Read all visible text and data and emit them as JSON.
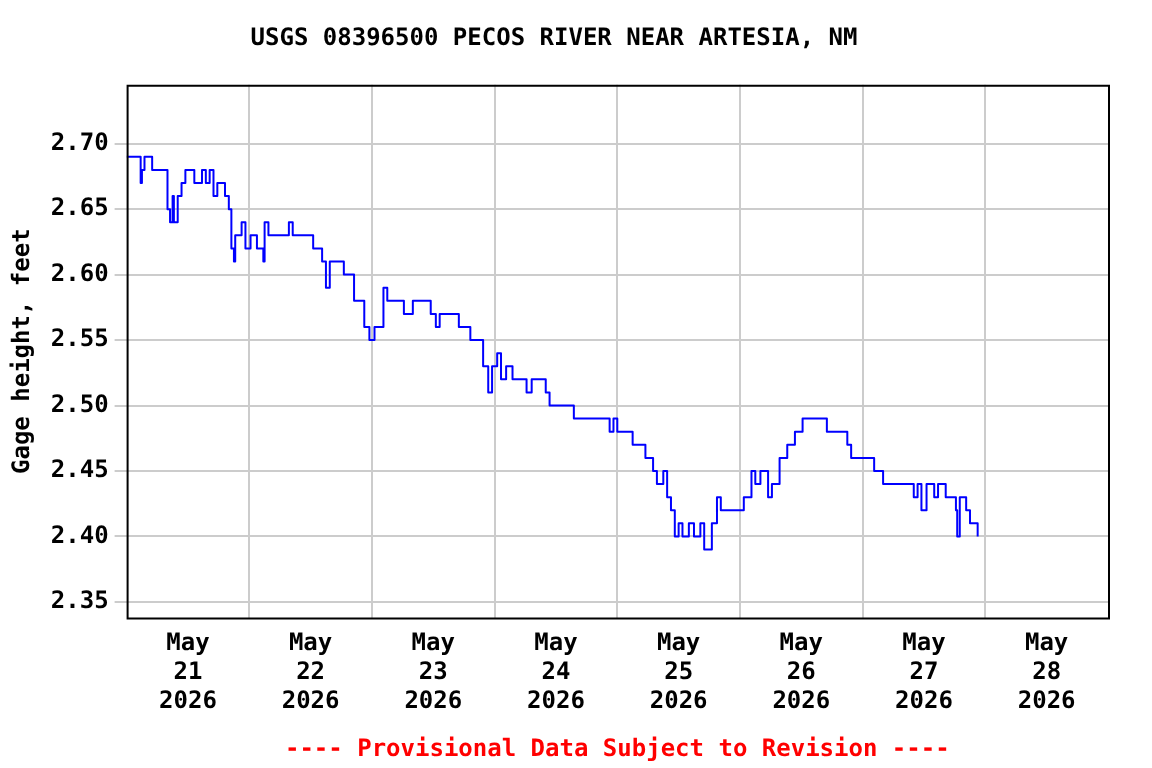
{
  "chart_data": {
    "type": "step",
    "title": "USGS 08396500 PECOS RIVER NEAR ARTESIA, NM",
    "ylabel": "Gage height, feet",
    "annotations": [
      "---- Provisional Data Subject to Revision ----"
    ],
    "xlim": [
      "2026-05-21T00:00",
      "2026-05-29T00:00"
    ],
    "xticks": [
      {
        "value": "2026-05-21T12:00",
        "label": "May 21 2026"
      },
      {
        "value": "2026-05-22T00:00",
        "label": null
      },
      {
        "value": "2026-05-22T12:00",
        "label": "May 22 2026"
      },
      {
        "value": "2026-05-23T00:00",
        "label": null
      },
      {
        "value": "2026-05-23T12:00",
        "label": "May 23 2026"
      },
      {
        "value": "2026-05-24T00:00",
        "label": null
      },
      {
        "value": "2026-05-24T12:00",
        "label": "May 24 2026"
      },
      {
        "value": "2026-05-25T00:00",
        "label": null
      },
      {
        "value": "2026-05-25T12:00",
        "label": "May 25 2026"
      },
      {
        "value": "2026-05-26T00:00",
        "label": null
      },
      {
        "value": "2026-05-26T12:00",
        "label": "May 26 2026"
      },
      {
        "value": "2026-05-27T00:00",
        "label": null
      },
      {
        "value": "2026-05-27T12:00",
        "label": "May 27 2026"
      },
      {
        "value": "2026-05-28T00:00",
        "label": null
      },
      {
        "value": "2026-05-28T12:00",
        "label": "May 28 2026"
      }
    ],
    "ylim": [
      2.338,
      2.745
    ],
    "yticks": [
      2.35,
      {
        "value": 2.4,
        "label": "2.40"
      },
      2.45,
      {
        "value": 2.5,
        "label": "2.50"
      },
      2.55,
      {
        "value": 2.6,
        "label": "2.60"
      },
      2.65,
      {
        "value": 2.7,
        "label": "2.70"
      }
    ],
    "grid": true,
    "legend": false,
    "series": [
      {
        "color": "#0000ff",
        "x": [
          "2026-05-21T00:00",
          "2026-05-21T02:15",
          "2026-05-21T02:45",
          "2026-05-21T03:00",
          "2026-05-21T03:30",
          "2026-05-21T04:45",
          "2026-05-21T05:00",
          "2026-05-21T07:45",
          "2026-05-21T08:00",
          "2026-05-21T08:30",
          "2026-05-21T09:00",
          "2026-05-21T09:15",
          "2026-05-21T10:00",
          "2026-05-21T10:45",
          "2026-05-21T11:30",
          "2026-05-21T13:15",
          "2026-05-21T14:45",
          "2026-05-21T15:30",
          "2026-05-21T16:15",
          "2026-05-21T17:00",
          "2026-05-21T17:45",
          "2026-05-21T19:15",
          "2026-05-21T20:00",
          "2026-05-21T20:30",
          "2026-05-21T21:00",
          "2026-05-21T21:15",
          "2026-05-21T22:30",
          "2026-05-21T23:15",
          "2026-05-22T00:15",
          "2026-05-22T01:30",
          "2026-05-22T02:45",
          "2026-05-22T03:00",
          "2026-05-22T03:45",
          "2026-05-22T07:45",
          "2026-05-22T08:30",
          "2026-05-22T12:30",
          "2026-05-22T14:15",
          "2026-05-22T15:00",
          "2026-05-22T15:45",
          "2026-05-22T18:30",
          "2026-05-22T20:30",
          "2026-05-22T22:30",
          "2026-05-22T23:30",
          "2026-05-23T00:30",
          "2026-05-23T02:15",
          "2026-05-23T03:00",
          "2026-05-23T06:15",
          "2026-05-23T08:00",
          "2026-05-23T11:30",
          "2026-05-23T12:30",
          "2026-05-23T13:15",
          "2026-05-23T17:00",
          "2026-05-23T19:15",
          "2026-05-23T21:45",
          "2026-05-23T22:45",
          "2026-05-23T23:30",
          "2026-05-24T00:30",
          "2026-05-24T01:15",
          "2026-05-24T02:15",
          "2026-05-24T03:30",
          "2026-05-24T06:15",
          "2026-05-24T07:15",
          "2026-05-24T10:00",
          "2026-05-24T10:45",
          "2026-05-24T15:30",
          "2026-05-24T22:30",
          "2026-05-24T23:15",
          "2026-05-25T00:00",
          "2026-05-25T03:00",
          "2026-05-25T05:30",
          "2026-05-25T07:00",
          "2026-05-25T07:45",
          "2026-05-25T09:00",
          "2026-05-25T09:45",
          "2026-05-25T10:30",
          "2026-05-25T11:15",
          "2026-05-25T12:00",
          "2026-05-25T12:45",
          "2026-05-25T14:00",
          "2026-05-25T15:00",
          "2026-05-25T16:15",
          "2026-05-25T17:00",
          "2026-05-25T18:30",
          "2026-05-25T19:30",
          "2026-05-25T20:15",
          "2026-05-26T00:45",
          "2026-05-26T02:15",
          "2026-05-26T03:00",
          "2026-05-26T04:00",
          "2026-05-26T05:30",
          "2026-05-26T06:15",
          "2026-05-26T07:45",
          "2026-05-26T09:15",
          "2026-05-26T10:45",
          "2026-05-26T12:15",
          "2026-05-26T17:00",
          "2026-05-26T21:00",
          "2026-05-26T21:45",
          "2026-05-27T02:15",
          "2026-05-27T04:00",
          "2026-05-27T10:00",
          "2026-05-27T10:45",
          "2026-05-27T11:30",
          "2026-05-27T12:30",
          "2026-05-27T14:00",
          "2026-05-27T14:45",
          "2026-05-27T16:15",
          "2026-05-27T18:15",
          "2026-05-27T18:30",
          "2026-05-27T19:00",
          "2026-05-27T20:15",
          "2026-05-27T21:00",
          "2026-05-27T22:30"
        ],
        "values": [
          2.69,
          2.69,
          2.67,
          2.68,
          2.69,
          2.69,
          2.68,
          2.68,
          2.65,
          2.64,
          2.66,
          2.64,
          2.66,
          2.67,
          2.68,
          2.67,
          2.68,
          2.67,
          2.68,
          2.66,
          2.67,
          2.66,
          2.65,
          2.62,
          2.61,
          2.63,
          2.64,
          2.62,
          2.63,
          2.62,
          2.61,
          2.64,
          2.63,
          2.64,
          2.63,
          2.62,
          2.61,
          2.59,
          2.61,
          2.6,
          2.58,
          2.56,
          2.55,
          2.56,
          2.59,
          2.58,
          2.57,
          2.58,
          2.57,
          2.56,
          2.57,
          2.56,
          2.55,
          2.53,
          2.51,
          2.53,
          2.54,
          2.52,
          2.53,
          2.52,
          2.51,
          2.52,
          2.51,
          2.5,
          2.49,
          2.48,
          2.49,
          2.48,
          2.47,
          2.46,
          2.45,
          2.44,
          2.45,
          2.43,
          2.42,
          2.4,
          2.41,
          2.4,
          2.41,
          2.4,
          2.41,
          2.39,
          2.41,
          2.43,
          2.42,
          2.43,
          2.45,
          2.44,
          2.45,
          2.43,
          2.44,
          2.46,
          2.47,
          2.48,
          2.49,
          2.48,
          2.47,
          2.46,
          2.45,
          2.44,
          2.43,
          2.44,
          2.42,
          2.44,
          2.43,
          2.44,
          2.43,
          2.42,
          2.4,
          2.43,
          2.42,
          2.41,
          2.4
        ]
      }
    ]
  }
}
